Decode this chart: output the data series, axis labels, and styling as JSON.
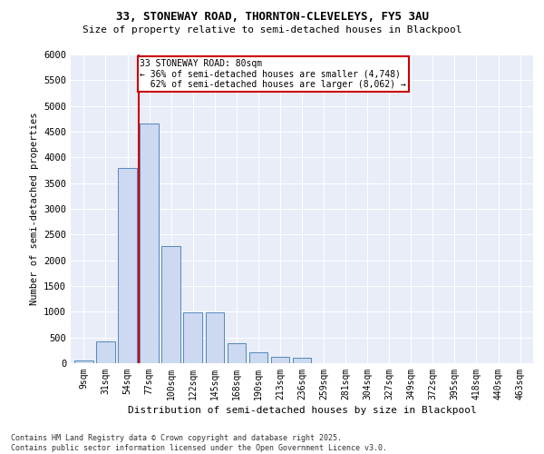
{
  "title_line1": "33, STONEWAY ROAD, THORNTON-CLEVELEYS, FY5 3AU",
  "title_line2": "Size of property relative to semi-detached houses in Blackpool",
  "xlabel": "Distribution of semi-detached houses by size in Blackpool",
  "ylabel": "Number of semi-detached properties",
  "footnote": "Contains HM Land Registry data © Crown copyright and database right 2025.\nContains public sector information licensed under the Open Government Licence v3.0.",
  "bar_color": "#ccd9f0",
  "bar_edge_color": "#5588bb",
  "annotation_box_color": "#cc0000",
  "vline_color": "#cc0000",
  "background_color": "#e8edf8",
  "property_label": "33 STONEWAY ROAD: 80sqm",
  "pct_smaller": 36,
  "count_smaller": 4748,
  "pct_larger": 62,
  "count_larger": 8062,
  "categories": [
    "9sqm",
    "31sqm",
    "54sqm",
    "77sqm",
    "100sqm",
    "122sqm",
    "145sqm",
    "168sqm",
    "190sqm",
    "213sqm",
    "236sqm",
    "259sqm",
    "281sqm",
    "304sqm",
    "327sqm",
    "349sqm",
    "372sqm",
    "395sqm",
    "418sqm",
    "440sqm",
    "463sqm"
  ],
  "values": [
    50,
    430,
    3800,
    4650,
    2280,
    980,
    980,
    390,
    220,
    120,
    110,
    0,
    0,
    0,
    0,
    0,
    0,
    0,
    0,
    0,
    0
  ],
  "ylim": [
    0,
    6000
  ],
  "yticks": [
    0,
    500,
    1000,
    1500,
    2000,
    2500,
    3000,
    3500,
    4000,
    4500,
    5000,
    5500,
    6000
  ],
  "vline_x_index": 3,
  "figsize": [
    6.0,
    5.0
  ],
  "dpi": 100
}
